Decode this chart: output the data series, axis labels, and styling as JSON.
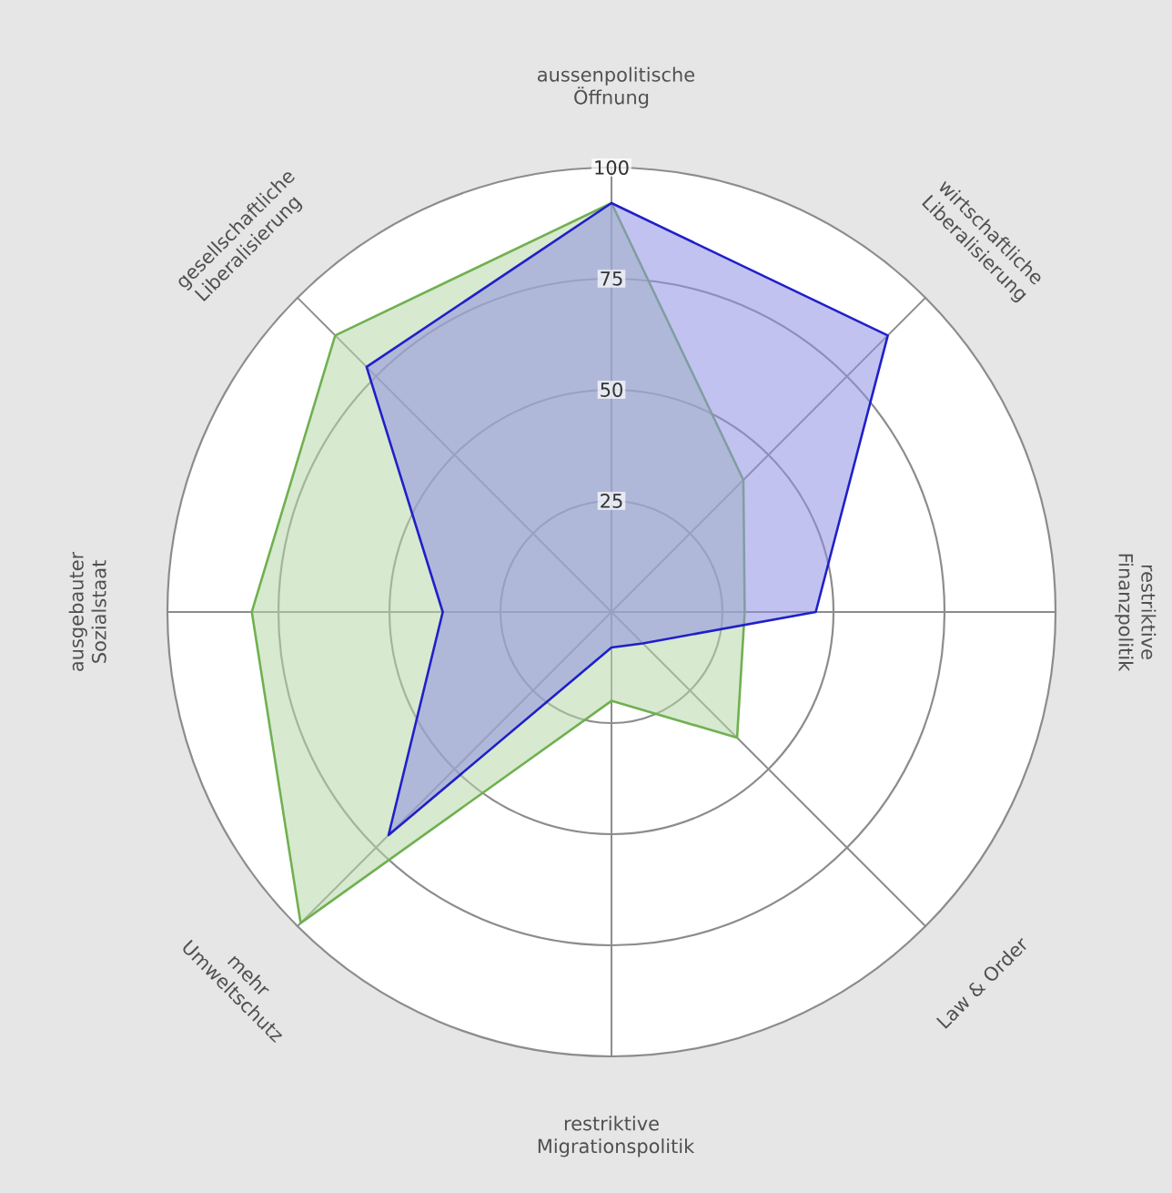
{
  "chart_data": {
    "type": "radar",
    "categories": [
      "aussenpolitische Öffnung",
      "wirtschaftliche Liberalisierung",
      "restriktive Finanzpolitik",
      "Law & Order",
      "restriktive Migrationspolitik",
      "mehr Umweltschutz",
      "ausgebauter Sozialstaat",
      "gesellschaftliche Liberalisierung"
    ],
    "series": [
      {
        "color": "#70b050",
        "values": [
          92,
          42,
          30,
          40,
          20,
          99,
          81,
          88
        ]
      },
      {
        "color": "#2020c8",
        "values": [
          92,
          88,
          46,
          10,
          8,
          71,
          38,
          78
        ]
      }
    ],
    "ylim": [
      0,
      100
    ],
    "yticks": [
      25,
      50,
      75,
      100
    ],
    "grid": true
  }
}
